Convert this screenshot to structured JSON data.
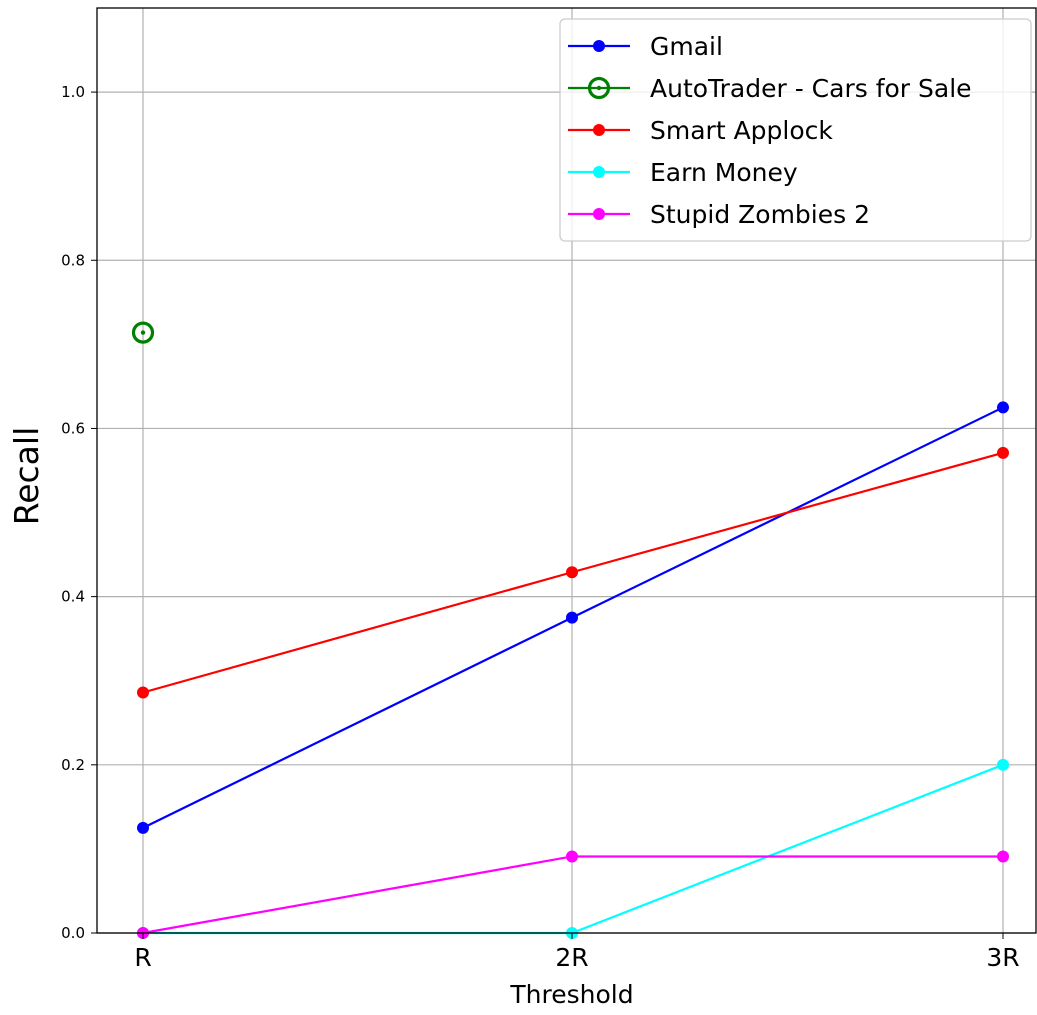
{
  "chart_data": {
    "type": "line",
    "title": "",
    "xlabel": "Threshold",
    "ylabel": "Recall",
    "categories": [
      "R",
      "2R",
      "3R"
    ],
    "ylim": [
      0.0,
      1.1
    ],
    "yticks": [
      0.0,
      0.2,
      0.4,
      0.6,
      0.8,
      1.0
    ],
    "ytick_labels": [
      "0.0",
      "0.2",
      "0.4",
      "0.6",
      "0.8",
      "1.0"
    ],
    "grid": true,
    "legend_position": "top-right",
    "series": [
      {
        "name": "Gmail",
        "color": "#0000ff",
        "marker": "dot",
        "values": [
          0.125,
          0.375,
          0.625
        ]
      },
      {
        "name": "AutoTrader - Cars for Sale",
        "color": "#008000",
        "marker": "ring",
        "values": [
          0.714,
          null,
          null
        ]
      },
      {
        "name": "Smart Applock",
        "color": "#ff0000",
        "marker": "dot",
        "values": [
          0.286,
          0.429,
          0.571
        ]
      },
      {
        "name": "Earn Money",
        "color": "#00ffff",
        "marker": "dot",
        "values": [
          0.0,
          0.0,
          0.2
        ]
      },
      {
        "name": "Stupid Zombies 2",
        "color": "#ff00ff",
        "marker": "dot",
        "values": [
          0.0,
          0.091,
          0.091
        ]
      }
    ]
  }
}
